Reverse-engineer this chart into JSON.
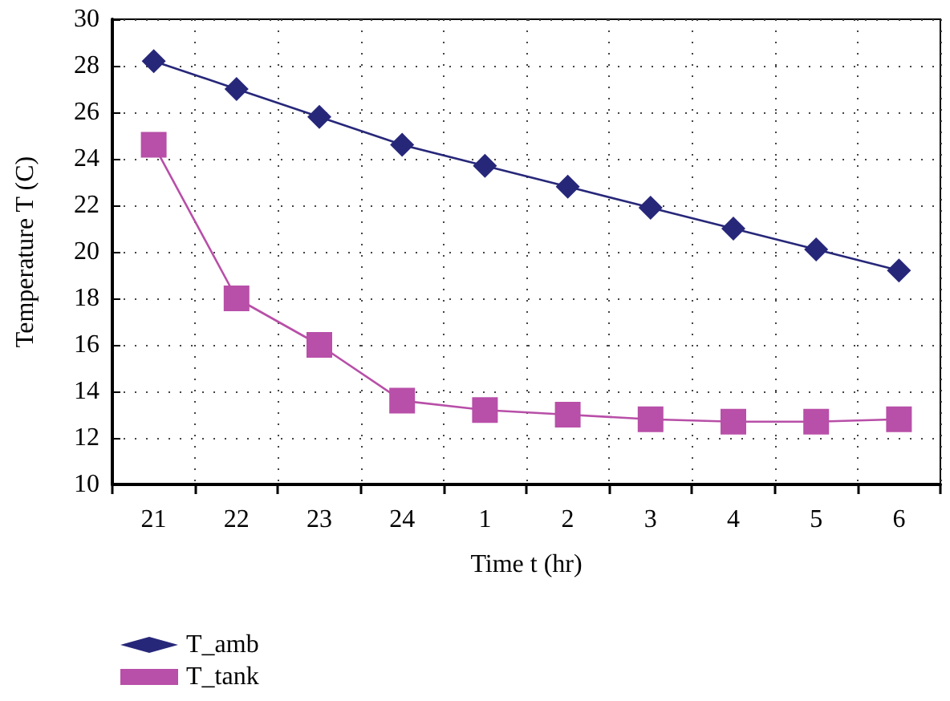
{
  "chart_data": {
    "type": "line",
    "xlabel": "Time t (hr)",
    "ylabel": "Temperature T (C)",
    "categories": [
      "21",
      "22",
      "23",
      "24",
      "1",
      "2",
      "3",
      "4",
      "5",
      "6"
    ],
    "series": [
      {
        "name": "T_amb",
        "color": "#27277a",
        "marker": "diamond",
        "values": [
          28.2,
          27.0,
          25.8,
          24.6,
          23.7,
          22.8,
          21.9,
          21.0,
          20.1,
          19.2
        ]
      },
      {
        "name": "T_tank",
        "color": "#b84fa8",
        "marker": "square",
        "values": [
          24.6,
          18.0,
          16.0,
          13.6,
          13.2,
          13.0,
          12.8,
          12.7,
          12.7,
          12.8
        ]
      }
    ],
    "ylim": [
      10,
      30
    ],
    "yticks": [
      10,
      12,
      14,
      16,
      18,
      20,
      22,
      24,
      26,
      28,
      30
    ],
    "grid": true,
    "legend": "bottom left",
    "line_style": "solid"
  }
}
